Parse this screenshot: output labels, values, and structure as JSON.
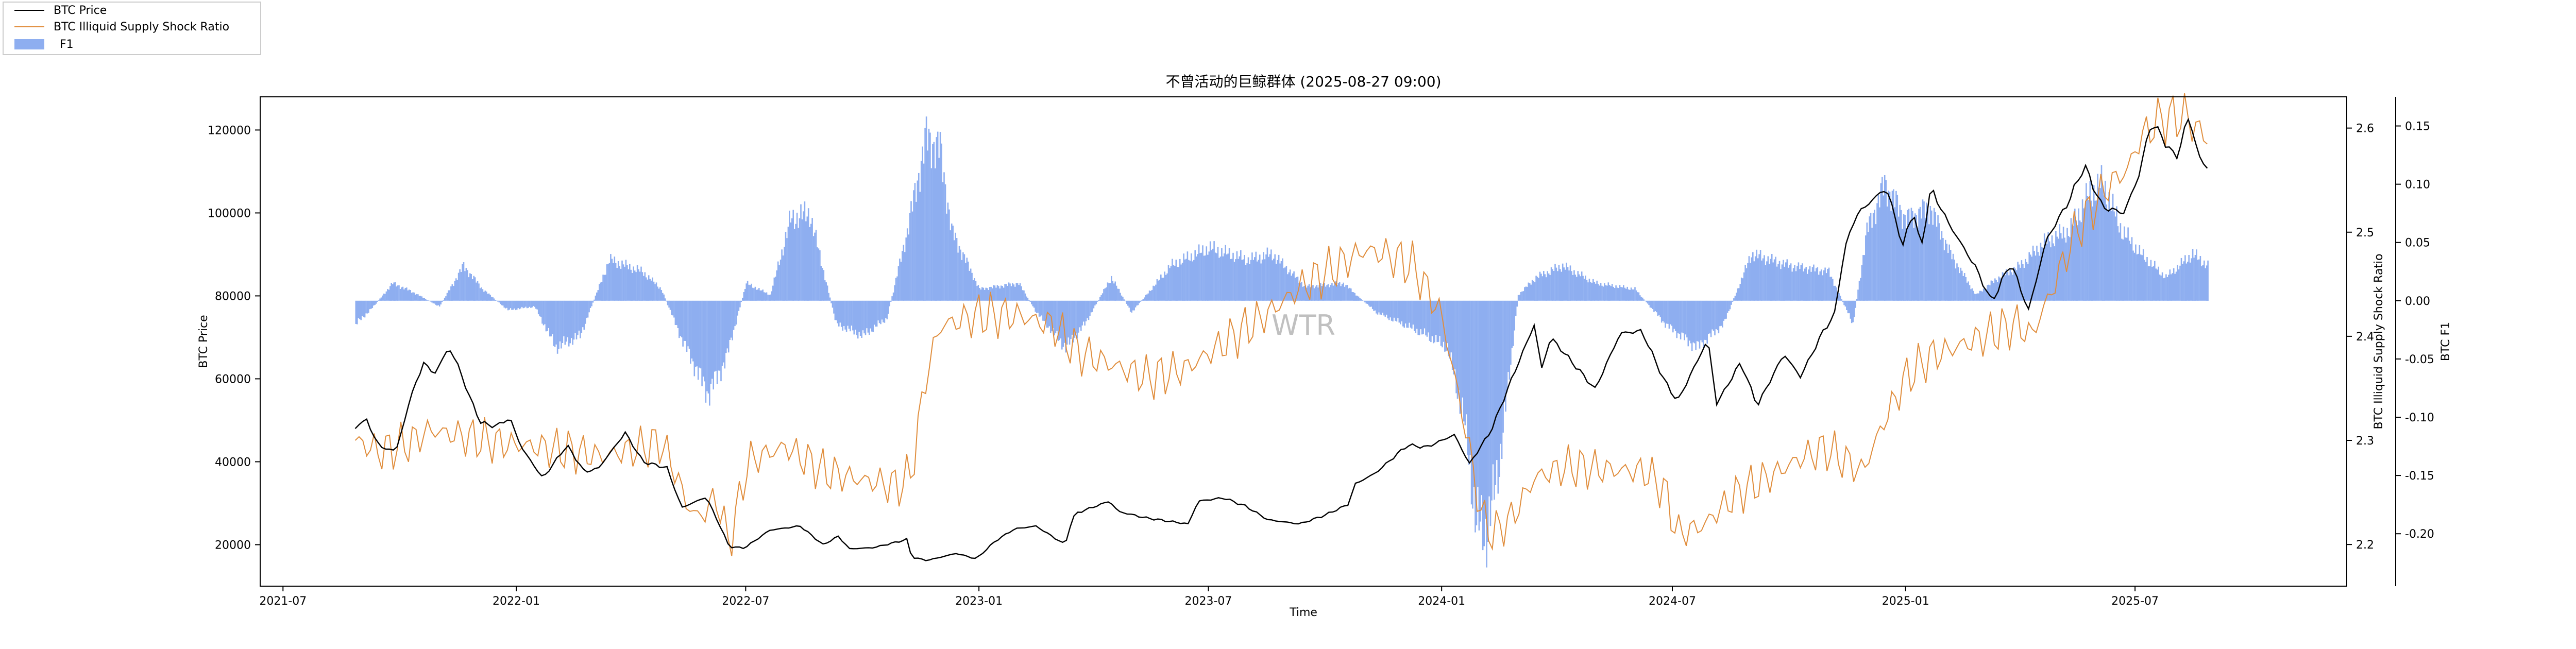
{
  "chart_data": {
    "type": "line",
    "title": "不曾活动的巨鲸群体 (2025-08-27 09:00)",
    "xlabel": "Time",
    "ylabel": "BTC Price",
    "y2label": "BTC Illiquid Supply Shock Ratio",
    "y3label": "BTC F1",
    "watermark": "WTR",
    "legend_position": "top-left",
    "grid": false,
    "x_range": [
      "2021-06-13",
      "2025-12-15"
    ],
    "ylim": [
      10000,
      128000
    ],
    "y2lim": [
      2.16,
      2.63
    ],
    "y3lim": [
      -0.245,
      0.175
    ],
    "x_ticks": [
      "2021-07",
      "2022-01",
      "2022-07",
      "2023-01",
      "2023-07",
      "2024-01",
      "2024-07",
      "2025-01",
      "2025-07"
    ],
    "y_ticks": [
      "20000",
      "40000",
      "60000",
      "80000",
      "100000",
      "120000"
    ],
    "y2_ticks": [
      "2.2",
      "2.3",
      "2.4",
      "2.5",
      "2.6"
    ],
    "y3_ticks": [
      "-0.20",
      "-0.15",
      "-0.10",
      "-0.05",
      "0.00",
      "0.05",
      "0.10",
      "0.15"
    ],
    "series": [
      {
        "name": "BTC Price",
        "axis": "left",
        "style": "line",
        "color": "#000000",
        "points": [
          [
            "2021-08-27",
            48000
          ],
          [
            "2021-09-05",
            50500
          ],
          [
            "2021-09-10",
            46000
          ],
          [
            "2021-09-21",
            42500
          ],
          [
            "2021-09-30",
            43800
          ],
          [
            "2021-10-08",
            54000
          ],
          [
            "2021-10-20",
            64000
          ],
          [
            "2021-10-28",
            61000
          ],
          [
            "2021-11-09",
            67500
          ],
          [
            "2021-11-15",
            64000
          ],
          [
            "2021-11-26",
            55000
          ],
          [
            "2021-12-04",
            49500
          ],
          [
            "2021-12-15",
            48500
          ],
          [
            "2021-12-27",
            50500
          ],
          [
            "2022-01-05",
            43500
          ],
          [
            "2022-01-22",
            36000
          ],
          [
            "2022-02-10",
            44000
          ],
          [
            "2022-02-24",
            37500
          ],
          [
            "2022-03-07",
            38500
          ],
          [
            "2022-03-28",
            47000
          ],
          [
            "2022-04-11",
            40000
          ],
          [
            "2022-04-30",
            38500
          ],
          [
            "2022-05-09",
            31000
          ],
          [
            "2022-05-12",
            29000
          ],
          [
            "2022-05-31",
            31500
          ],
          [
            "2022-06-13",
            23000
          ],
          [
            "2022-06-18",
            19500
          ],
          [
            "2022-06-30",
            19200
          ],
          [
            "2022-07-20",
            23500
          ],
          [
            "2022-08-13",
            24500
          ],
          [
            "2022-08-31",
            20000
          ],
          [
            "2022-09-12",
            22000
          ],
          [
            "2022-09-21",
            19000
          ],
          [
            "2022-10-10",
            19300
          ],
          [
            "2022-10-29",
            20700
          ],
          [
            "2022-11-05",
            21300
          ],
          [
            "2022-11-09",
            17000
          ],
          [
            "2022-11-21",
            16200
          ],
          [
            "2022-12-14",
            17900
          ],
          [
            "2022-12-30",
            16600
          ],
          [
            "2023-01-14",
            20900
          ],
          [
            "2023-01-29",
            23800
          ],
          [
            "2023-02-15",
            24500
          ],
          [
            "2023-03-10",
            20000
          ],
          [
            "2023-03-14",
            24500
          ],
          [
            "2023-03-18",
            27500
          ],
          [
            "2023-04-14",
            30500
          ],
          [
            "2023-04-21",
            28000
          ],
          [
            "2023-05-12",
            26500
          ],
          [
            "2023-06-15",
            25000
          ],
          [
            "2023-06-23",
            30500
          ],
          [
            "2023-07-13",
            31300
          ],
          [
            "2023-07-31",
            29200
          ],
          [
            "2023-08-17",
            26000
          ],
          [
            "2023-09-11",
            25000
          ],
          [
            "2023-09-30",
            27000
          ],
          [
            "2023-10-20",
            29800
          ],
          [
            "2023-10-24",
            34500
          ],
          [
            "2023-11-10",
            37300
          ],
          [
            "2023-12-05",
            44000
          ],
          [
            "2023-12-20",
            43500
          ],
          [
            "2024-01-11",
            46500
          ],
          [
            "2024-01-23",
            39500
          ],
          [
            "2024-02-09",
            47500
          ],
          [
            "2024-02-28",
            62000
          ],
          [
            "2024-03-14",
            73000
          ],
          [
            "2024-03-20",
            62500
          ],
          [
            "2024-03-27",
            70000
          ],
          [
            "2024-04-13",
            64000
          ],
          [
            "2024-05-01",
            57500
          ],
          [
            "2024-05-21",
            71000
          ],
          [
            "2024-06-07",
            71500
          ],
          [
            "2024-06-24",
            60000
          ],
          [
            "2024-07-05",
            54500
          ],
          [
            "2024-07-29",
            69500
          ],
          [
            "2024-08-05",
            54000
          ],
          [
            "2024-08-24",
            64000
          ],
          [
            "2024-09-06",
            53500
          ],
          [
            "2024-09-27",
            66000
          ],
          [
            "2024-10-10",
            60500
          ],
          [
            "2024-10-29",
            72000
          ],
          [
            "2024-11-06",
            75500
          ],
          [
            "2024-11-13",
            90000
          ],
          [
            "2024-11-22",
            99000
          ],
          [
            "2024-12-05",
            103000
          ],
          [
            "2024-12-17",
            106000
          ],
          [
            "2024-12-30",
            92000
          ],
          [
            "2025-01-07",
            101000
          ],
          [
            "2025-01-13",
            91000
          ],
          [
            "2025-01-21",
            106000
          ],
          [
            "2025-02-03",
            98000
          ],
          [
            "2025-02-25",
            87000
          ],
          [
            "2025-03-10",
            78500
          ],
          [
            "2025-03-25",
            88000
          ],
          [
            "2025-04-08",
            76500
          ],
          [
            "2025-04-22",
            93500
          ],
          [
            "2025-05-10",
            103000
          ],
          [
            "2025-05-22",
            111500
          ],
          [
            "2025-06-05",
            101500
          ],
          [
            "2025-06-22",
            100000
          ],
          [
            "2025-07-03",
            108000
          ],
          [
            "2025-07-14",
            122000
          ],
          [
            "2025-07-24",
            117500
          ],
          [
            "2025-08-02",
            113000
          ],
          [
            "2025-08-13",
            123500
          ],
          [
            "2025-08-20",
            113500
          ],
          [
            "2025-08-27",
            111000
          ]
        ]
      },
      {
        "name": "BTC Illiquid Supply Shock Ratio",
        "axis": "right",
        "style": "line",
        "color": "#e08d3c",
        "points": [
          [
            "2021-08-27",
            2.3
          ],
          [
            "2021-09-15",
            2.289
          ],
          [
            "2021-10-10",
            2.298
          ],
          [
            "2021-10-25",
            2.31
          ],
          [
            "2021-11-15",
            2.305
          ],
          [
            "2021-12-20",
            2.297
          ],
          [
            "2022-01-10",
            2.295
          ],
          [
            "2022-02-10",
            2.29
          ],
          [
            "2022-03-10",
            2.285
          ],
          [
            "2022-04-10",
            2.293
          ],
          [
            "2022-04-25",
            2.298
          ],
          [
            "2022-05-05",
            2.275
          ],
          [
            "2022-05-15",
            2.24
          ],
          [
            "2022-05-25",
            2.225
          ],
          [
            "2022-06-08",
            2.245
          ],
          [
            "2022-06-18",
            2.2
          ],
          [
            "2022-07-03",
            2.28
          ],
          [
            "2022-08-01",
            2.294
          ],
          [
            "2022-09-01",
            2.27
          ],
          [
            "2022-10-01",
            2.262
          ],
          [
            "2022-10-30",
            2.256
          ],
          [
            "2022-11-09",
            2.27
          ],
          [
            "2022-11-20",
            2.36
          ],
          [
            "2022-12-01",
            2.41
          ],
          [
            "2023-01-01",
            2.42
          ],
          [
            "2023-02-01",
            2.42
          ],
          [
            "2023-03-01",
            2.41
          ],
          [
            "2023-03-20",
            2.385
          ],
          [
            "2023-04-15",
            2.373
          ],
          [
            "2023-05-15",
            2.36
          ],
          [
            "2023-06-15",
            2.37
          ],
          [
            "2023-07-15",
            2.395
          ],
          [
            "2023-08-15",
            2.42
          ],
          [
            "2023-09-15",
            2.45
          ],
          [
            "2023-10-15",
            2.47
          ],
          [
            "2023-11-01",
            2.483
          ],
          [
            "2023-11-20",
            2.478
          ],
          [
            "2023-12-10",
            2.467
          ],
          [
            "2024-01-01",
            2.42
          ],
          [
            "2024-01-20",
            2.31
          ],
          [
            "2024-02-01",
            2.23
          ],
          [
            "2024-02-10",
            2.21
          ],
          [
            "2024-02-25",
            2.225
          ],
          [
            "2024-03-15",
            2.265
          ],
          [
            "2024-04-10",
            2.275
          ],
          [
            "2024-05-10",
            2.272
          ],
          [
            "2024-06-10",
            2.27
          ],
          [
            "2024-06-25",
            2.252
          ],
          [
            "2024-07-05",
            2.21
          ],
          [
            "2024-07-25",
            2.218
          ],
          [
            "2024-08-20",
            2.248
          ],
          [
            "2024-09-20",
            2.268
          ],
          [
            "2024-10-10",
            2.283
          ],
          [
            "2024-10-30",
            2.292
          ],
          [
            "2024-11-15",
            2.28
          ],
          [
            "2024-11-28",
            2.27
          ],
          [
            "2024-12-15",
            2.318
          ],
          [
            "2025-01-01",
            2.36
          ],
          [
            "2025-01-20",
            2.38
          ],
          [
            "2025-02-15",
            2.392
          ],
          [
            "2025-03-15",
            2.405
          ],
          [
            "2025-03-30",
            2.412
          ],
          [
            "2025-04-10",
            2.4
          ],
          [
            "2025-04-25",
            2.44
          ],
          [
            "2025-05-15",
            2.5
          ],
          [
            "2025-06-10",
            2.545
          ],
          [
            "2025-06-25",
            2.56
          ],
          [
            "2025-07-05",
            2.59
          ],
          [
            "2025-07-20",
            2.608
          ],
          [
            "2025-08-01",
            2.61
          ],
          [
            "2025-08-10",
            2.612
          ],
          [
            "2025-08-18",
            2.6
          ],
          [
            "2025-08-27",
            2.59
          ]
        ]
      },
      {
        "name": "F1",
        "axis": "right2",
        "style": "area",
        "color": "#8eaef0",
        "points": [
          [
            "2021-08-27",
            -0.02
          ],
          [
            "2021-09-10",
            -0.005
          ],
          [
            "2021-09-25",
            0.015
          ],
          [
            "2021-10-10",
            0.008
          ],
          [
            "2021-11-01",
            -0.005
          ],
          [
            "2021-11-20",
            0.03
          ],
          [
            "2021-12-05",
            0.01
          ],
          [
            "2021-12-25",
            -0.008
          ],
          [
            "2022-01-15",
            -0.005
          ],
          [
            "2022-02-01",
            -0.04
          ],
          [
            "2022-02-20",
            -0.03
          ],
          [
            "2022-03-15",
            0.035
          ],
          [
            "2022-04-10",
            0.025
          ],
          [
            "2022-04-25",
            0.01
          ],
          [
            "2022-05-10",
            -0.03
          ],
          [
            "2022-06-01",
            -0.08
          ],
          [
            "2022-06-15",
            -0.05
          ],
          [
            "2022-07-01",
            0.015
          ],
          [
            "2022-07-20",
            0.005
          ],
          [
            "2022-08-05",
            0.07
          ],
          [
            "2022-08-20",
            0.075
          ],
          [
            "2022-09-10",
            -0.02
          ],
          [
            "2022-10-01",
            -0.03
          ],
          [
            "2022-10-20",
            -0.015
          ],
          [
            "2022-11-05",
            0.06
          ],
          [
            "2022-11-20",
            0.14
          ],
          [
            "2022-12-01",
            0.13
          ],
          [
            "2022-12-10",
            0.06
          ],
          [
            "2023-01-01",
            0.01
          ],
          [
            "2023-02-01",
            0.015
          ],
          [
            "2023-02-15",
            -0.01
          ],
          [
            "2023-03-10",
            -0.04
          ],
          [
            "2023-03-25",
            -0.02
          ],
          [
            "2023-04-15",
            0.02
          ],
          [
            "2023-05-01",
            -0.01
          ],
          [
            "2023-06-01",
            0.03
          ],
          [
            "2023-07-01",
            0.045
          ],
          [
            "2023-08-01",
            0.035
          ],
          [
            "2023-08-20",
            0.04
          ],
          [
            "2023-09-15",
            0.012
          ],
          [
            "2023-10-15",
            0.015
          ],
          [
            "2023-11-10",
            -0.01
          ],
          [
            "2023-12-01",
            -0.02
          ],
          [
            "2023-12-20",
            -0.03
          ],
          [
            "2024-01-05",
            -0.04
          ],
          [
            "2024-01-18",
            -0.1
          ],
          [
            "2024-01-28",
            -0.19
          ],
          [
            "2024-02-05",
            -0.2
          ],
          [
            "2024-02-15",
            -0.14
          ],
          [
            "2024-03-01",
            0.005
          ],
          [
            "2024-03-15",
            0.02
          ],
          [
            "2024-04-05",
            0.03
          ],
          [
            "2024-05-01",
            0.015
          ],
          [
            "2024-06-01",
            0.01
          ],
          [
            "2024-06-25",
            -0.02
          ],
          [
            "2024-07-20",
            -0.04
          ],
          [
            "2024-08-10",
            -0.02
          ],
          [
            "2024-09-01",
            0.04
          ],
          [
            "2024-10-01",
            0.03
          ],
          [
            "2024-11-01",
            0.025
          ],
          [
            "2024-11-20",
            -0.02
          ],
          [
            "2024-12-01",
            0.06
          ],
          [
            "2024-12-15",
            0.1
          ],
          [
            "2025-01-01",
            0.07
          ],
          [
            "2025-01-20",
            0.08
          ],
          [
            "2025-02-05",
            0.04
          ],
          [
            "2025-02-25",
            0.005
          ],
          [
            "2025-03-15",
            0.02
          ],
          [
            "2025-04-01",
            0.03
          ],
          [
            "2025-04-20",
            0.05
          ],
          [
            "2025-05-10",
            0.06
          ],
          [
            "2025-05-25",
            0.09
          ],
          [
            "2025-06-05",
            0.1
          ],
          [
            "2025-06-20",
            0.06
          ],
          [
            "2025-07-05",
            0.04
          ],
          [
            "2025-07-25",
            0.02
          ],
          [
            "2025-08-15",
            0.04
          ],
          [
            "2025-08-27",
            0.03
          ]
        ]
      }
    ]
  }
}
